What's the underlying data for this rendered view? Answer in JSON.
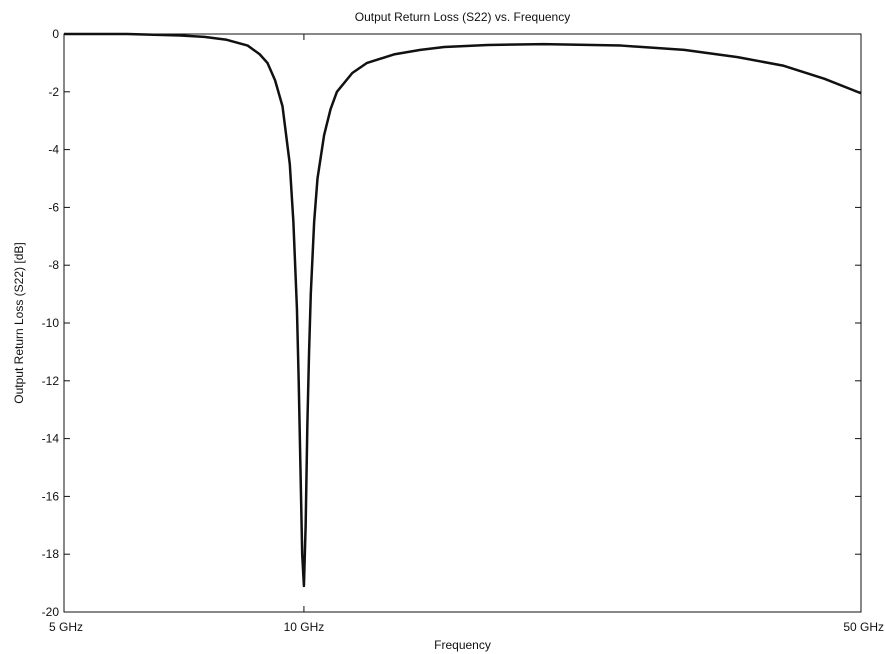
{
  "chart_data": {
    "type": "line",
    "title": "Output Return Loss (S22) vs. Frequency",
    "xlabel": "Frequency",
    "ylabel": "Output Return Loss (S22) [dB]",
    "x_scale": "log",
    "xlim_ghz": [
      5,
      50
    ],
    "ylim": [
      -20,
      0
    ],
    "x_ticks": [
      {
        "value": 5,
        "label": "5 GHz"
      },
      {
        "value": 10,
        "label": "10 GHz"
      },
      {
        "value": 50,
        "label": "50 GHz"
      }
    ],
    "y_ticks": [
      {
        "value": 0,
        "label": "0"
      },
      {
        "value": -2,
        "label": "-2"
      },
      {
        "value": -4,
        "label": "-4"
      },
      {
        "value": -6,
        "label": "-6"
      },
      {
        "value": -8,
        "label": "-8"
      },
      {
        "value": -10,
        "label": "-10"
      },
      {
        "value": -12,
        "label": "-12"
      },
      {
        "value": -14,
        "label": "-14"
      },
      {
        "value": -16,
        "label": "-16"
      },
      {
        "value": -18,
        "label": "-18"
      },
      {
        "value": -20,
        "label": "-20"
      }
    ],
    "grid": false,
    "line_color": "#111111",
    "series": [
      {
        "x": [
          5.0,
          6.0,
          7.0,
          7.5,
          8.0,
          8.5,
          8.8,
          9.0,
          9.2,
          9.4,
          9.6,
          9.7,
          9.8,
          9.85,
          9.9,
          9.95,
          10.0,
          10.05,
          10.1,
          10.15,
          10.2,
          10.3,
          10.4,
          10.6,
          10.8,
          11.0,
          11.5,
          12.0,
          13.0,
          14.0,
          15.0,
          17.0,
          20.0,
          25.0,
          30.0,
          35.0,
          40.0,
          45.0,
          50.0
        ],
        "y": [
          0.0,
          0.0,
          -0.05,
          -0.1,
          -0.2,
          -0.4,
          -0.7,
          -1.0,
          -1.6,
          -2.5,
          -4.5,
          -6.5,
          -9.5,
          -12.0,
          -15.0,
          -18.0,
          -19.1,
          -17.0,
          -13.5,
          -11.0,
          -9.0,
          -6.5,
          -5.0,
          -3.5,
          -2.6,
          -2.0,
          -1.35,
          -1.0,
          -0.7,
          -0.55,
          -0.45,
          -0.38,
          -0.35,
          -0.4,
          -0.55,
          -0.8,
          -1.1,
          -1.55,
          -2.05
        ]
      }
    ]
  }
}
